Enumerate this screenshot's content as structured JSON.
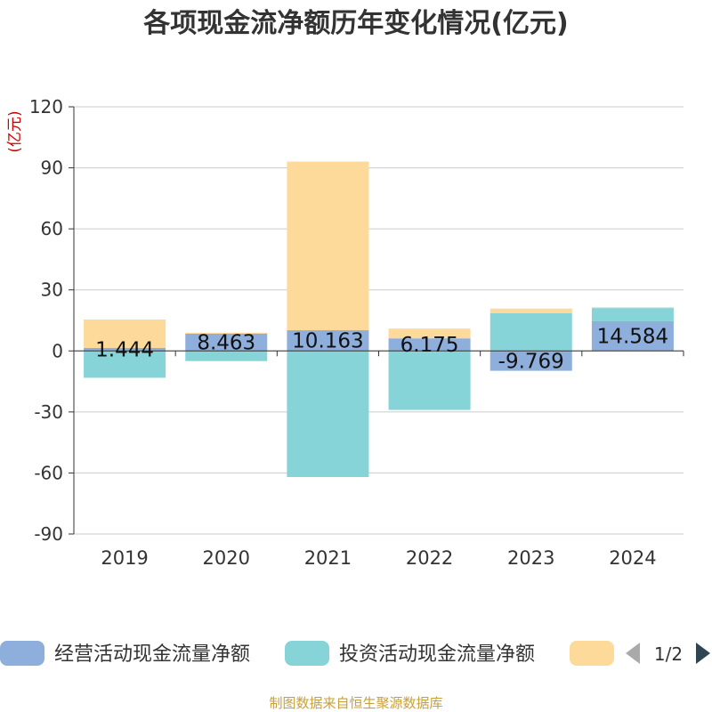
{
  "chart_data": {
    "type": "bar",
    "stacked": true,
    "title": "各项现金流净额历年变化情况(亿元)",
    "ylabel": "(亿元)",
    "categories": [
      "2019",
      "2020",
      "2021",
      "2022",
      "2023",
      "2024"
    ],
    "ylim": [
      -90,
      120
    ],
    "yticks": [
      120,
      90,
      60,
      30,
      0,
      -30,
      -60,
      -90
    ],
    "grid": true,
    "legend_position": "bottom",
    "series": [
      {
        "name": "经营活动现金流量净额",
        "color": "#8eaedb",
        "values": [
          1.444,
          8.463,
          10.163,
          6.175,
          -9.769,
          14.584
        ],
        "labels": [
          "1.444",
          "8.463",
          "10.163",
          "6.175",
          "-9.769",
          "14.584"
        ]
      },
      {
        "name": "投资活动现金流量净额",
        "color": "#86d4d8",
        "values": [
          -13.2,
          -5.0,
          -62.0,
          -29.0,
          18.5,
          6.5
        ]
      },
      {
        "name": "",
        "color": "#fdd99a",
        "values": [
          14.0,
          0.5,
          82.9,
          4.8,
          2.3,
          0.4
        ]
      }
    ]
  },
  "legend": {
    "items": [
      {
        "label": "经营活动现金流量净额",
        "color": "#8eaedb"
      },
      {
        "label": "投资活动现金流量净额",
        "color": "#86d4d8"
      },
      {
        "label": "",
        "color": "#fdd99a"
      }
    ],
    "page_indicator": "1/2",
    "prev_icon": "triangle-left-icon",
    "next_icon": "triangle-right-icon"
  },
  "source": "制图数据来自恒生聚源数据库"
}
